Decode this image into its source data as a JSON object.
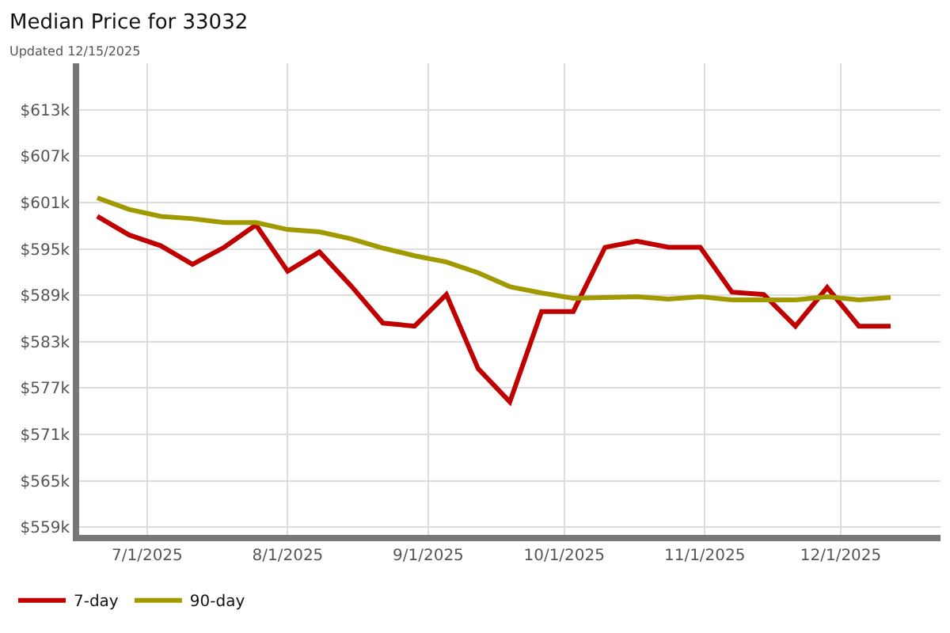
{
  "chart_data": {
    "type": "line",
    "title": "Median Price for 33032",
    "subtitle": "Updated 12/15/2025",
    "x": [
      "2025-06-20",
      "2025-06-27",
      "2025-07-04",
      "2025-07-11",
      "2025-07-18",
      "2025-07-25",
      "2025-08-01",
      "2025-08-08",
      "2025-08-15",
      "2025-08-22",
      "2025-08-29",
      "2025-09-05",
      "2025-09-12",
      "2025-09-19",
      "2025-09-26",
      "2025-10-03",
      "2025-10-10",
      "2025-10-17",
      "2025-10-24",
      "2025-10-31",
      "2025-11-07",
      "2025-11-14",
      "2025-11-21",
      "2025-11-28",
      "2025-12-05",
      "2025-12-12"
    ],
    "series": [
      {
        "name": "7-day",
        "color": "#c00000",
        "values": [
          599.2,
          596.8,
          595.4,
          593.0,
          595.2,
          598.1,
          592.1,
          594.6,
          590.2,
          585.4,
          585.0,
          589.1,
          579.5,
          575.2,
          586.9,
          586.9,
          595.2,
          596.0,
          595.2,
          595.2,
          589.4,
          589.1,
          585.0,
          590.0,
          585.0,
          585.0
        ]
      },
      {
        "name": "90-day",
        "color": "#a09a00",
        "values": [
          601.6,
          600.1,
          599.2,
          598.9,
          598.4,
          598.4,
          597.5,
          597.2,
          596.3,
          595.1,
          594.1,
          593.3,
          591.9,
          590.1,
          589.3,
          588.6,
          588.7,
          588.8,
          588.5,
          588.8,
          588.4,
          588.4,
          588.4,
          588.8,
          588.4,
          588.7
        ]
      }
    ],
    "xlim": [
      "2025-06-16",
      "2025-12-23"
    ],
    "xticks": [
      {
        "value": "2025-07-01",
        "label": "7/1/2025"
      },
      {
        "value": "2025-08-01",
        "label": "8/1/2025"
      },
      {
        "value": "2025-09-01",
        "label": "9/1/2025"
      },
      {
        "value": "2025-10-01",
        "label": "10/1/2025"
      },
      {
        "value": "2025-11-01",
        "label": "11/1/2025"
      },
      {
        "value": "2025-12-01",
        "label": "12/1/2025"
      }
    ],
    "ylim": [
      558,
      619
    ],
    "yticks": [
      {
        "value": 559,
        "label": "$559k"
      },
      {
        "value": 565,
        "label": "$565k"
      },
      {
        "value": 571,
        "label": "$571k"
      },
      {
        "value": 577,
        "label": "$577k"
      },
      {
        "value": 583,
        "label": "$583k"
      },
      {
        "value": 589,
        "label": "$589k"
      },
      {
        "value": 595,
        "label": "$595k"
      },
      {
        "value": 601,
        "label": "$601k"
      },
      {
        "value": 607,
        "label": "$607k"
      },
      {
        "value": 613,
        "label": "$613k"
      }
    ],
    "grid": true,
    "legend": "bottom left",
    "marker": "none",
    "line_style": "solid"
  }
}
